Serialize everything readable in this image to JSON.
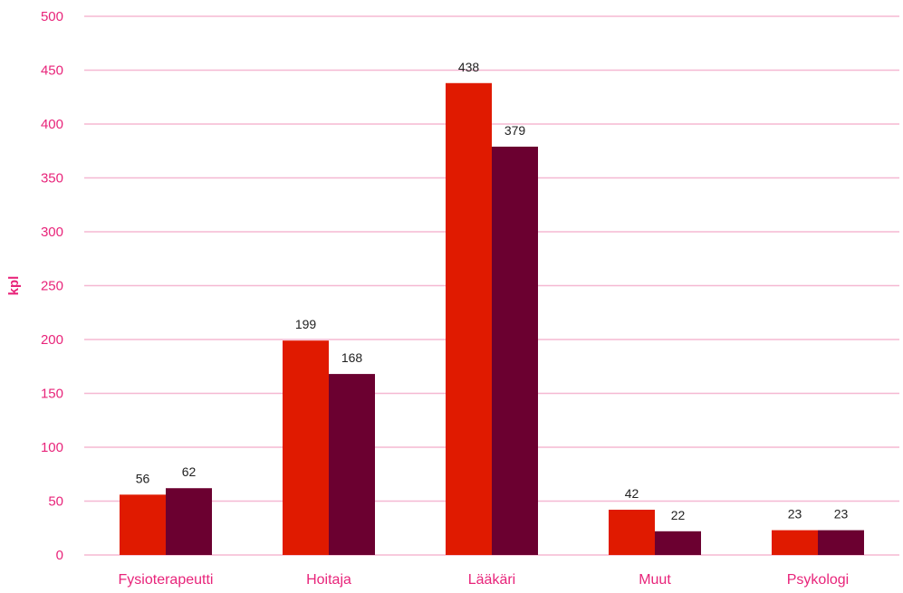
{
  "chart_data": {
    "type": "bar",
    "categories": [
      "Fysioterapeutti",
      "Hoitaja",
      "Lääkäri",
      "Muut",
      "Psykologi"
    ],
    "series": [
      {
        "values": [
          56,
          199,
          438,
          42,
          23
        ],
        "color": "#e01a00"
      },
      {
        "values": [
          62,
          168,
          379,
          22,
          23
        ],
        "color": "#6b0030"
      }
    ],
    "ylabel": "kpl",
    "ylim": [
      0,
      500
    ],
    "yticks": [
      0,
      50,
      100,
      150,
      200,
      250,
      300,
      350,
      400,
      450,
      500
    ],
    "grid": true,
    "grid_color": "#f5b8d2",
    "label_color": "#e8247a"
  }
}
